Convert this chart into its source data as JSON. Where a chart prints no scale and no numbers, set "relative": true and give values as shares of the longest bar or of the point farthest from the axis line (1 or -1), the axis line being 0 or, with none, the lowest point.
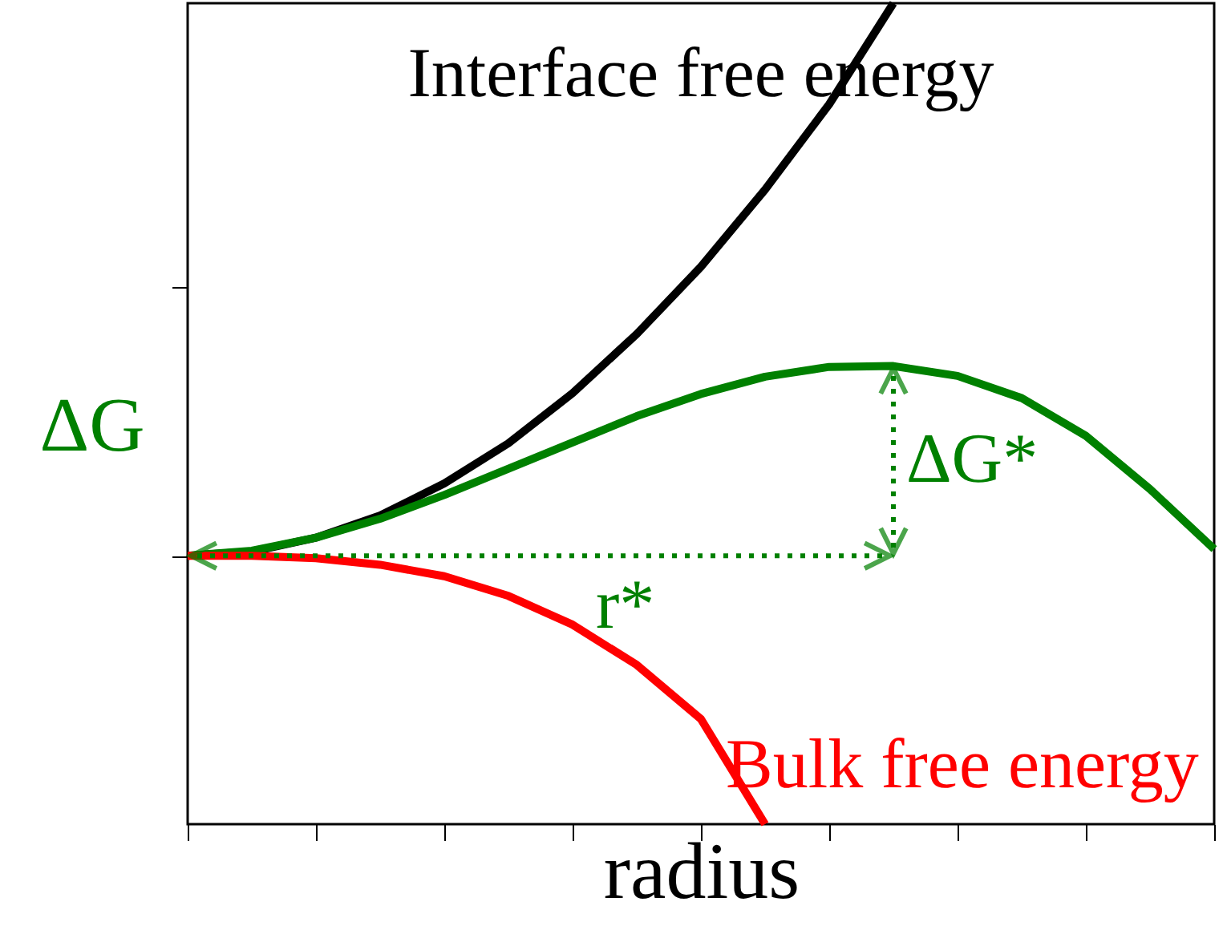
{
  "chart_data": {
    "type": "line",
    "relative": true,
    "xlabel": "radius",
    "ylabel": "ΔG",
    "tick_labels": false,
    "grid": false,
    "categories": [
      null,
      null,
      null,
      null,
      null,
      null,
      null,
      null,
      null,
      null,
      null,
      null,
      null,
      null,
      null,
      null,
      null
    ],
    "series": [
      {
        "color": "#000000",
        "values": [
          0.327,
          0.332,
          0.349,
          0.376,
          0.415,
          0.464,
          0.525,
          0.597,
          0.679,
          0.773,
          0.877,
          1.0,
          null,
          null,
          null,
          null,
          null
        ]
      },
      {
        "color": "#008000",
        "values": [
          0.327,
          0.333,
          0.349,
          0.372,
          0.401,
          0.433,
          0.465,
          0.497,
          0.524,
          0.545,
          0.557,
          0.558,
          0.546,
          0.519,
          0.473,
          0.408,
          0.335
        ]
      },
      {
        "color": "#ff0000",
        "values": [
          0.327,
          0.327,
          0.324,
          0.316,
          0.302,
          0.278,
          0.243,
          0.194,
          0.128,
          0.0,
          null,
          null,
          null,
          null,
          null,
          null,
          null
        ]
      }
    ],
    "annotations": [
      "Interface free energy",
      "Bulk free energy",
      "ΔG*",
      "r*"
    ]
  }
}
